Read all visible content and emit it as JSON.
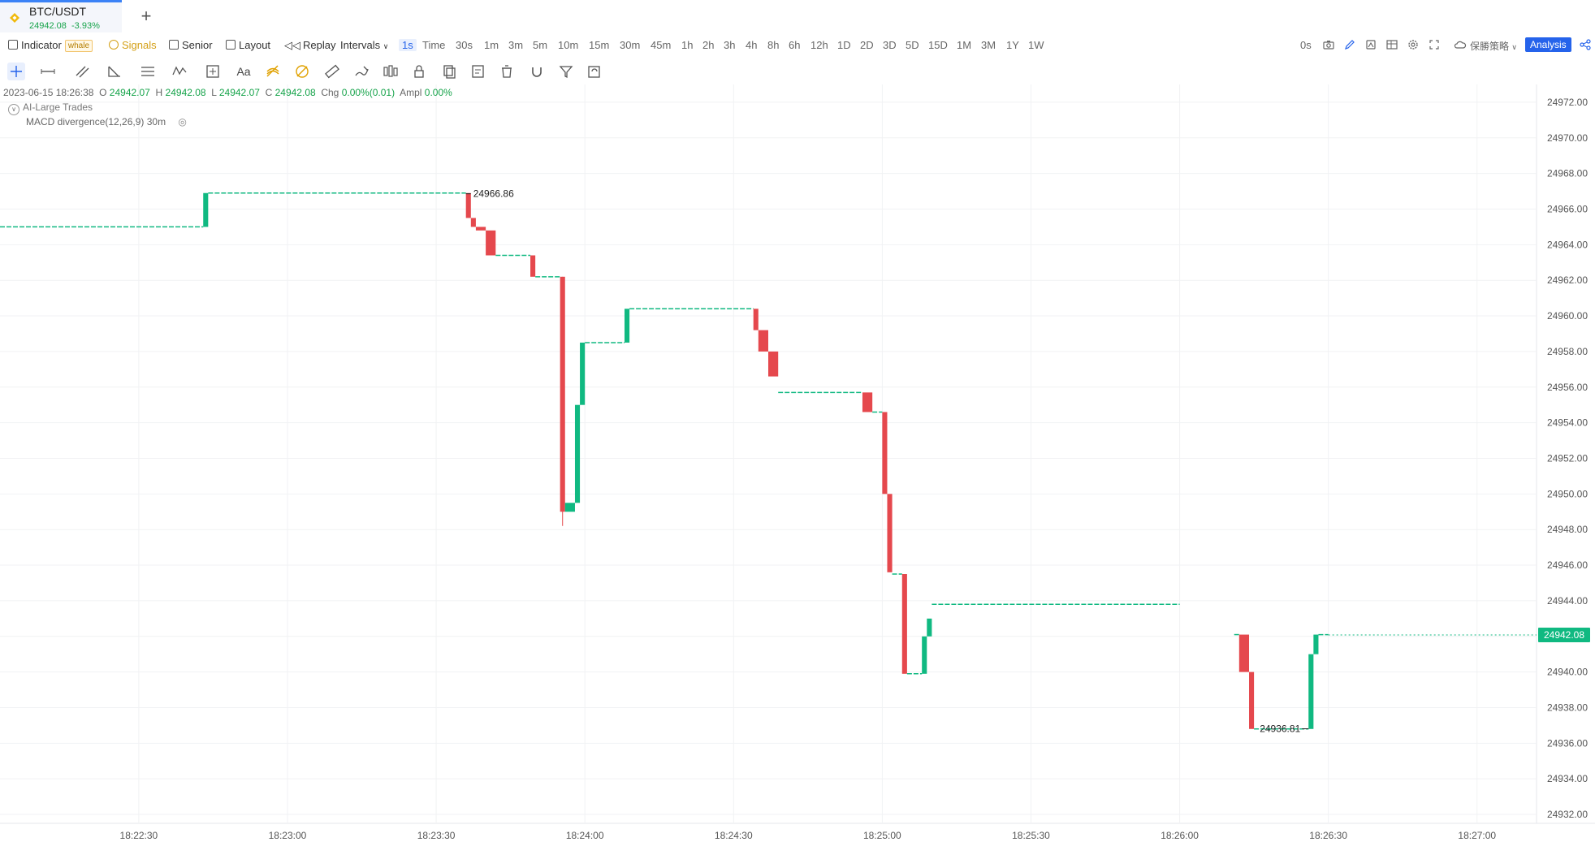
{
  "tab": {
    "symbol": "BTC/USDT",
    "price": "24942.08",
    "change": "-3.93%",
    "add_label": "+"
  },
  "toolbar": {
    "indicator": "Indicator",
    "whale_badge": "whale",
    "signals": "Signals",
    "senior": "Senior",
    "layout": "Layout",
    "replay": "Replay",
    "intervals": "Intervals",
    "interval_options": [
      "1s",
      "Time",
      "30s",
      "1m",
      "3m",
      "5m",
      "10m",
      "15m",
      "30m",
      "45m",
      "1h",
      "2h",
      "3h",
      "4h",
      "8h",
      "6h",
      "12h",
      "1D",
      "2D",
      "3D",
      "5D",
      "15D",
      "1M",
      "3M",
      "1Y",
      "1W"
    ],
    "active_interval": "1s",
    "countdown": "0s",
    "cloud_strategy": "保勝策略",
    "analysis": "Analysis"
  },
  "drawing_tools": [
    "crosshair",
    "horizontal-line",
    "parallel-channel",
    "angle",
    "lines",
    "wave",
    "measure",
    "text",
    "fib-retracement",
    "fib-circle",
    "ruler",
    "brush",
    "long-short",
    "lock",
    "copy",
    "edit",
    "delete",
    "magnet",
    "filter",
    "sync"
  ],
  "drawing_tools_text": "Aa",
  "legend": {
    "datetime": "2023-06-15 18:26:38",
    "O": "24942.07",
    "H": "24942.08",
    "L": "24942.07",
    "C": "24942.08",
    "chg": "0.00%(0.01)",
    "ampl": "0.00%",
    "label_o": "O",
    "label_h": "H",
    "label_l": "L",
    "label_c": "C",
    "label_chg": "Chg",
    "label_ampl": "Ampl"
  },
  "indicators": [
    "AI-Large Trades",
    "MACD divergence(12,26,9) 30m"
  ],
  "colors": {
    "up": "#10b981",
    "down": "#e5484d",
    "accent": "#2563eb",
    "badge": "#10b981"
  },
  "chart_data": {
    "type": "candlestick",
    "symbol": "BTC/USDT",
    "interval": "1s",
    "y_ticks": [
      "24972.00",
      "24970.00",
      "24968.00",
      "24966.00",
      "24964.00",
      "24962.00",
      "24960.00",
      "24958.00",
      "24956.00",
      "24954.00",
      "24952.00",
      "24950.00",
      "24948.00",
      "24946.00",
      "24944.00",
      "24942.00",
      "24940.00",
      "24938.00",
      "24936.00",
      "24934.00",
      "24932.00"
    ],
    "ylim": [
      24931.5,
      24973.0
    ],
    "x_ticks": [
      "18:22:30",
      "18:23:00",
      "18:23:30",
      "18:24:00",
      "18:24:30",
      "18:25:00",
      "18:25:30",
      "18:26:00",
      "18:26:30",
      "18:27:00"
    ],
    "xlim": [
      "18:22:02",
      "18:27:12"
    ],
    "last_price": "24942.08",
    "annotations": {
      "high": "24966.86",
      "low": "24936.81"
    },
    "segments": [
      {
        "from": "18:22:02",
        "to": "18:22:43",
        "price": 24965.0,
        "dir": "flat"
      },
      {
        "from": "18:22:43",
        "to": "18:22:44",
        "open": 24965.0,
        "close": 24966.9,
        "dir": "up"
      },
      {
        "from": "18:22:44",
        "to": "18:23:36",
        "price": 24966.9,
        "dir": "flat"
      },
      {
        "from": "18:23:36",
        "to": "18:23:37",
        "open": 24966.9,
        "close": 24965.5,
        "dir": "down"
      },
      {
        "from": "18:23:37",
        "to": "18:23:38",
        "open": 24965.5,
        "close": 24965.0,
        "dir": "down"
      },
      {
        "from": "18:23:38",
        "to": "18:23:40",
        "open": 24965.0,
        "close": 24964.8,
        "dir": "down"
      },
      {
        "from": "18:23:40",
        "to": "18:23:42",
        "open": 24964.8,
        "close": 24963.4,
        "dir": "down"
      },
      {
        "from": "18:23:42",
        "to": "18:23:49",
        "price": 24963.4,
        "dir": "flat"
      },
      {
        "from": "18:23:49",
        "to": "18:23:50",
        "open": 24963.4,
        "close": 24962.2,
        "dir": "down"
      },
      {
        "from": "18:23:50",
        "to": "18:23:55",
        "price": 24962.2,
        "dir": "flat"
      },
      {
        "from": "18:23:55",
        "to": "18:23:56",
        "open": 24962.2,
        "close": 24949.0,
        "low": 24948.2,
        "dir": "down"
      },
      {
        "from": "18:23:56",
        "to": "18:23:58",
        "open": 24949.0,
        "close": 24949.5,
        "dir": "up"
      },
      {
        "from": "18:23:58",
        "to": "18:23:59",
        "open": 24949.5,
        "close": 24955.0,
        "dir": "up"
      },
      {
        "from": "18:23:59",
        "to": "18:24:00",
        "open": 24955.0,
        "close": 24958.5,
        "dir": "up"
      },
      {
        "from": "18:24:00",
        "to": "18:24:08",
        "price": 24958.5,
        "dir": "flat"
      },
      {
        "from": "18:24:08",
        "to": "18:24:09",
        "open": 24958.5,
        "close": 24960.4,
        "dir": "up"
      },
      {
        "from": "18:24:09",
        "to": "18:24:34",
        "price": 24960.4,
        "dir": "flat"
      },
      {
        "from": "18:24:34",
        "to": "18:24:35",
        "open": 24960.4,
        "close": 24959.2,
        "dir": "down"
      },
      {
        "from": "18:24:35",
        "to": "18:24:37",
        "open": 24959.2,
        "close": 24958.0,
        "dir": "down"
      },
      {
        "from": "18:24:37",
        "to": "18:24:39",
        "open": 24958.0,
        "close": 24956.6,
        "dir": "down"
      },
      {
        "from": "18:24:39",
        "to": "18:24:56",
        "price": 24955.7,
        "dir": "flat"
      },
      {
        "from": "18:24:56",
        "to": "18:24:58",
        "open": 24955.7,
        "close": 24954.6,
        "dir": "down"
      },
      {
        "from": "18:24:58",
        "to": "18:25:00",
        "price": 24954.6,
        "dir": "flat"
      },
      {
        "from": "18:25:00",
        "to": "18:25:01",
        "open": 24954.6,
        "close": 24950.0,
        "dir": "down"
      },
      {
        "from": "18:25:01",
        "to": "18:25:02",
        "open": 24950.0,
        "close": 24945.6,
        "dir": "down"
      },
      {
        "from": "18:25:02",
        "to": "18:25:04",
        "price": 24945.5,
        "dir": "flat"
      },
      {
        "from": "18:25:04",
        "to": "18:25:05",
        "open": 24945.5,
        "close": 24939.9,
        "dir": "down"
      },
      {
        "from": "18:25:05",
        "to": "18:25:08",
        "price": 24939.9,
        "dir": "flat"
      },
      {
        "from": "18:25:08",
        "to": "18:25:09",
        "open": 24939.9,
        "close": 24942.0,
        "dir": "up"
      },
      {
        "from": "18:25:09",
        "to": "18:25:10",
        "open": 24942.0,
        "close": 24943.0,
        "dir": "up"
      },
      {
        "from": "18:25:10",
        "to": "18:26:00",
        "price": 24943.8,
        "dir": "flat"
      },
      {
        "from": "18:26:11",
        "to": "18:26:12",
        "price": 24942.1,
        "dir": "flat"
      },
      {
        "from": "18:26:12",
        "to": "18:26:14",
        "open": 24942.1,
        "close": 24940.0,
        "dir": "down"
      },
      {
        "from": "18:26:14",
        "to": "18:26:15",
        "open": 24940.0,
        "close": 24936.8,
        "dir": "down"
      },
      {
        "from": "18:26:15",
        "to": "18:26:26",
        "price": 24936.8,
        "dir": "flat"
      },
      {
        "from": "18:26:26",
        "to": "18:26:27",
        "open": 24936.8,
        "close": 24941.0,
        "dir": "up"
      },
      {
        "from": "18:26:27",
        "to": "18:26:28",
        "open": 24941.0,
        "close": 24942.1,
        "dir": "up"
      },
      {
        "from": "18:26:28",
        "to": "18:26:30",
        "price": 24942.1,
        "dir": "flat"
      }
    ]
  }
}
